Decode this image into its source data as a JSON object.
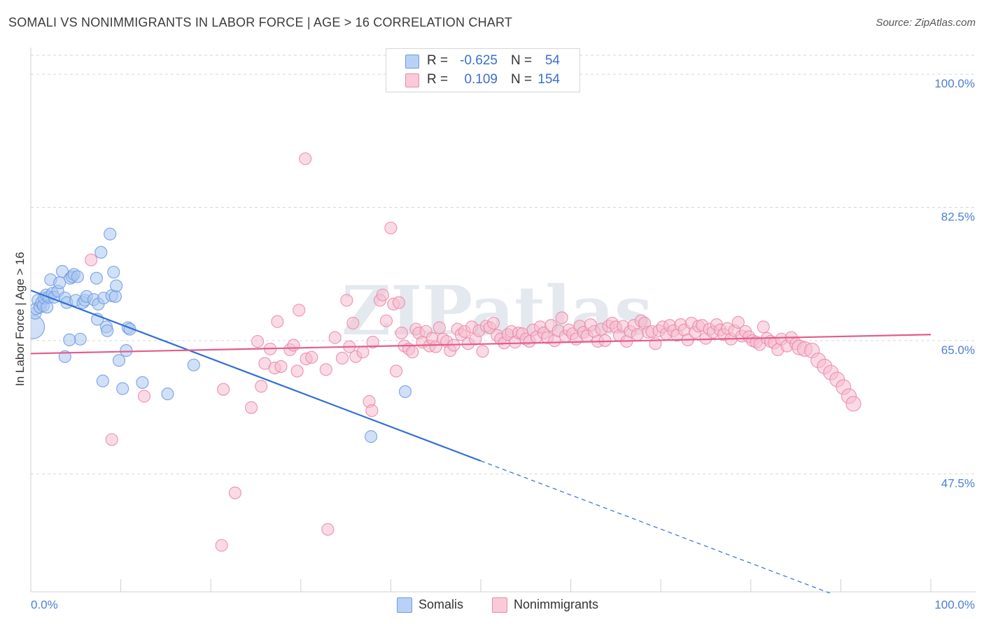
{
  "header": {
    "title": "SOMALI VS NONIMMIGRANTS IN LABOR FORCE | AGE > 16 CORRELATION CHART",
    "source": "Source: ZipAtlas.com"
  },
  "legend_top": {
    "rows": [
      {
        "r_label": "R =",
        "r_value": "-0.625",
        "n_label": "N =",
        "n_value": "54"
      },
      {
        "r_label": "R =",
        "r_value": "0.109",
        "n_label": "N =",
        "n_value": "154"
      }
    ]
  },
  "legend_bottom": {
    "somalis": "Somalis",
    "nonimmigrants": "Nonimmigrants"
  },
  "colors": {
    "blue_fill": "#a9c7f1",
    "blue_stroke": "#6f9ae0",
    "blue_line": "#2f6fd6",
    "pink_fill": "#f6bccd",
    "pink_stroke": "#e98aa8",
    "pink_line": "#e35d8a",
    "tick_label": "#4a7fd4",
    "grid": "#d6d6d6"
  },
  "chart_data": {
    "type": "scatter",
    "title": "SOMALI VS NONIMMIGRANTS IN LABOR FORCE | AGE > 16 CORRELATION CHART",
    "xlabel": "",
    "ylabel": "In Labor Force | Age > 16",
    "xlim": [
      0,
      100
    ],
    "ylim": [
      32,
      103.5
    ],
    "x_tick_labels": [
      "0.0%",
      "100.0%"
    ],
    "y_ticks": [
      47.5,
      65.0,
      82.5,
      100.0
    ],
    "y_tick_labels": [
      "47.5%",
      "65.0%",
      "82.5%",
      "100.0%"
    ],
    "watermark": "ZIPatlas",
    "series": [
      {
        "name": "Somalis",
        "R": -0.625,
        "N": 54,
        "trend": {
          "x0": 0,
          "y0": 71.6,
          "x1": 50,
          "y1": 49.2,
          "dash_to_x": 100,
          "dash_to_y": 26.8
        },
        "points": [
          [
            0.2,
            66.8
          ],
          [
            0.5,
            68.6
          ],
          [
            0.6,
            69.2
          ],
          [
            0.8,
            70.3
          ],
          [
            1.0,
            69.4
          ],
          [
            1.2,
            70.0
          ],
          [
            1.4,
            69.6
          ],
          [
            1.5,
            70.6
          ],
          [
            1.7,
            71.0
          ],
          [
            1.8,
            69.4
          ],
          [
            2.0,
            70.7
          ],
          [
            2.2,
            73.0
          ],
          [
            2.4,
            71.2
          ],
          [
            2.6,
            70.7
          ],
          [
            3.0,
            71.5
          ],
          [
            3.2,
            72.6
          ],
          [
            3.5,
            74.1
          ],
          [
            3.8,
            70.6
          ],
          [
            4.0,
            70.0
          ],
          [
            4.4,
            73.2
          ],
          [
            4.6,
            73.4
          ],
          [
            4.8,
            73.7
          ],
          [
            5.0,
            70.3
          ],
          [
            5.2,
            73.4
          ],
          [
            5.5,
            65.2
          ],
          [
            4.3,
            65.1
          ],
          [
            3.8,
            62.9
          ],
          [
            5.8,
            70.0
          ],
          [
            6.0,
            70.3
          ],
          [
            6.2,
            70.8
          ],
          [
            7.0,
            70.4
          ],
          [
            7.3,
            73.2
          ],
          [
            7.4,
            67.8
          ],
          [
            7.5,
            69.8
          ],
          [
            8.1,
            70.6
          ],
          [
            8.4,
            66.8
          ],
          [
            8.5,
            66.3
          ],
          [
            8.8,
            79.0
          ],
          [
            7.8,
            76.6
          ],
          [
            9.0,
            70.9
          ],
          [
            9.4,
            70.8
          ],
          [
            9.2,
            74.0
          ],
          [
            9.5,
            72.2
          ],
          [
            9.8,
            62.4
          ],
          [
            10.2,
            58.7
          ],
          [
            10.8,
            66.7
          ],
          [
            11.0,
            66.5
          ],
          [
            10.6,
            63.7
          ],
          [
            12.4,
            59.5
          ],
          [
            8.0,
            59.7
          ],
          [
            15.2,
            58.0
          ],
          [
            18.1,
            61.8
          ],
          [
            41.6,
            58.3
          ],
          [
            37.8,
            52.4
          ]
        ]
      },
      {
        "name": "Nonimmigrants",
        "R": 0.109,
        "N": 154,
        "trend": {
          "x0": 0,
          "y0": 63.3,
          "x1": 100,
          "y1": 65.8
        },
        "points": [
          [
            6.7,
            75.6
          ],
          [
            9.0,
            52.0
          ],
          [
            12.6,
            57.7
          ],
          [
            21.4,
            58.6
          ],
          [
            22.7,
            45.0
          ],
          [
            21.2,
            38.1
          ],
          [
            24.5,
            56.2
          ],
          [
            25.6,
            59.0
          ],
          [
            25.2,
            64.9
          ],
          [
            26.0,
            62.0
          ],
          [
            26.6,
            63.9
          ],
          [
            27.4,
            67.5
          ],
          [
            27.1,
            61.4
          ],
          [
            27.8,
            61.6
          ],
          [
            28.8,
            63.8
          ],
          [
            29.6,
            61.0
          ],
          [
            29.2,
            64.4
          ],
          [
            29.8,
            69.0
          ],
          [
            30.5,
            88.9
          ],
          [
            30.6,
            62.6
          ],
          [
            31.2,
            62.8
          ],
          [
            32.8,
            61.2
          ],
          [
            33.0,
            40.2
          ],
          [
            33.8,
            65.4
          ],
          [
            34.6,
            62.7
          ],
          [
            35.1,
            70.3
          ],
          [
            35.4,
            64.2
          ],
          [
            35.8,
            67.3
          ],
          [
            36.1,
            62.9
          ],
          [
            36.9,
            63.5
          ],
          [
            37.6,
            57.0
          ],
          [
            37.9,
            55.8
          ],
          [
            38.0,
            64.8
          ],
          [
            38.8,
            70.3
          ],
          [
            39.1,
            71.0
          ],
          [
            39.5,
            67.6
          ],
          [
            40.0,
            79.8
          ],
          [
            40.3,
            69.8
          ],
          [
            40.6,
            61.0
          ],
          [
            40.9,
            70.0
          ],
          [
            41.2,
            66.0
          ],
          [
            41.5,
            64.3
          ],
          [
            42.0,
            63.9
          ],
          [
            42.4,
            63.5
          ],
          [
            42.8,
            66.5
          ],
          [
            43.1,
            66.0
          ],
          [
            43.5,
            64.8
          ],
          [
            43.9,
            66.2
          ],
          [
            44.3,
            64.3
          ],
          [
            44.6,
            65.3
          ],
          [
            45.0,
            64.2
          ],
          [
            45.4,
            66.7
          ],
          [
            45.8,
            65.2
          ],
          [
            46.2,
            64.9
          ],
          [
            46.6,
            63.7
          ],
          [
            47.0,
            64.4
          ],
          [
            47.4,
            66.5
          ],
          [
            47.8,
            65.8
          ],
          [
            48.2,
            66.2
          ],
          [
            48.6,
            64.6
          ],
          [
            49.0,
            66.8
          ],
          [
            49.4,
            65.2
          ],
          [
            49.8,
            66.3
          ],
          [
            50.2,
            63.6
          ],
          [
            50.6,
            66.9
          ],
          [
            51.0,
            66.7
          ],
          [
            51.4,
            67.3
          ],
          [
            51.8,
            65.7
          ],
          [
            52.2,
            65.2
          ],
          [
            52.6,
            64.7
          ],
          [
            53.0,
            65.8
          ],
          [
            53.4,
            66.2
          ],
          [
            53.8,
            64.8
          ],
          [
            54.2,
            66.0
          ],
          [
            54.6,
            65.9
          ],
          [
            55.0,
            65.2
          ],
          [
            55.4,
            64.9
          ],
          [
            55.8,
            66.4
          ],
          [
            56.2,
            65.5
          ],
          [
            56.6,
            66.8
          ],
          [
            57.0,
            66.0
          ],
          [
            57.4,
            65.4
          ],
          [
            57.8,
            67.0
          ],
          [
            58.2,
            65.0
          ],
          [
            58.6,
            66.3
          ],
          [
            59.0,
            68.0
          ],
          [
            59.4,
            65.6
          ],
          [
            59.8,
            66.4
          ],
          [
            60.2,
            65.9
          ],
          [
            60.6,
            65.2
          ],
          [
            61.0,
            66.9
          ],
          [
            61.4,
            66.1
          ],
          [
            61.8,
            65.6
          ],
          [
            62.2,
            67.1
          ],
          [
            62.6,
            66.2
          ],
          [
            63.0,
            64.9
          ],
          [
            63.4,
            66.5
          ],
          [
            63.8,
            65.0
          ],
          [
            64.2,
            66.9
          ],
          [
            64.6,
            67.3
          ],
          [
            65.0,
            66.8
          ],
          [
            65.4,
            65.7
          ],
          [
            65.8,
            66.9
          ],
          [
            66.2,
            64.9
          ],
          [
            66.6,
            66.2
          ],
          [
            67.0,
            67.0
          ],
          [
            67.4,
            65.8
          ],
          [
            67.8,
            67.6
          ],
          [
            68.2,
            67.3
          ],
          [
            68.6,
            66.1
          ],
          [
            69.0,
            66.2
          ],
          [
            69.4,
            64.6
          ],
          [
            69.8,
            66.3
          ],
          [
            70.2,
            66.8
          ],
          [
            70.6,
            65.9
          ],
          [
            71.0,
            67.0
          ],
          [
            71.4,
            66.3
          ],
          [
            71.8,
            65.7
          ],
          [
            72.2,
            67.1
          ],
          [
            72.6,
            66.4
          ],
          [
            73.0,
            65.1
          ],
          [
            73.4,
            67.3
          ],
          [
            73.8,
            66.1
          ],
          [
            74.2,
            66.9
          ],
          [
            74.6,
            67.0
          ],
          [
            75.0,
            65.3
          ],
          [
            75.4,
            66.5
          ],
          [
            75.8,
            66.1
          ],
          [
            76.2,
            67.1
          ],
          [
            76.6,
            66.4
          ],
          [
            77.0,
            65.8
          ],
          [
            77.4,
            66.6
          ],
          [
            77.8,
            65.2
          ],
          [
            78.2,
            66.3
          ],
          [
            78.6,
            67.4
          ],
          [
            79.0,
            65.6
          ],
          [
            79.4,
            66.2
          ],
          [
            79.8,
            65.5
          ],
          [
            80.2,
            65.0
          ],
          [
            80.6,
            64.8
          ],
          [
            81.0,
            64.5
          ],
          [
            81.4,
            66.8
          ],
          [
            81.8,
            65.3
          ],
          [
            82.2,
            64.9
          ],
          [
            82.6,
            64.7
          ],
          [
            83.0,
            63.8
          ],
          [
            83.4,
            65.2
          ],
          [
            84.0,
            64.3
          ],
          [
            84.5,
            65.4
          ],
          [
            85.0,
            64.6
          ],
          [
            85.4,
            64.1
          ],
          [
            86.0,
            63.9
          ],
          [
            86.8,
            63.7
          ],
          [
            87.5,
            62.4
          ],
          [
            88.2,
            61.6
          ],
          [
            88.9,
            60.8
          ],
          [
            89.6,
            59.9
          ],
          [
            90.3,
            58.9
          ],
          [
            90.9,
            57.7
          ],
          [
            91.4,
            56.7
          ]
        ]
      }
    ]
  }
}
